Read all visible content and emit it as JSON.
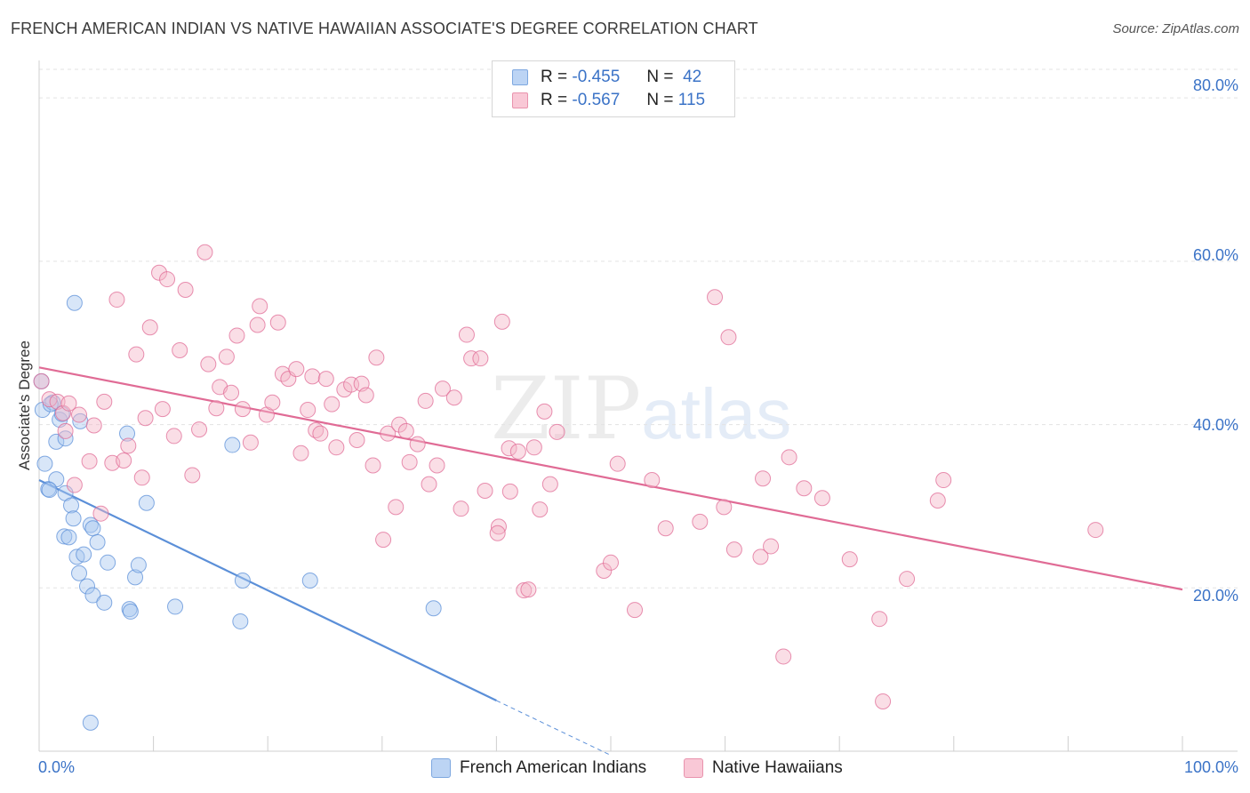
{
  "title": "FRENCH AMERICAN INDIAN VS NATIVE HAWAIIAN ASSOCIATE'S DEGREE CORRELATION CHART",
  "source": "Source: ZipAtlas.com",
  "watermark": {
    "zip": "ZIP",
    "atlas": "atlas"
  },
  "legend": {
    "rows": [
      {
        "r_label": "R =",
        "r_value": "-0.455",
        "n_label": "N =",
        "n_value": "42",
        "color": "#a9c7f0"
      },
      {
        "r_label": "R =",
        "r_value": "-0.567",
        "n_label": "N =",
        "n_value": "115",
        "color": "#f5b5c8"
      }
    ]
  },
  "bottom_legend": [
    {
      "label": "French American Indians",
      "color": "#a9c7f0"
    },
    {
      "label": "Native Hawaiians",
      "color": "#f5b5c8"
    }
  ],
  "chart_data": {
    "type": "scatter",
    "title": "FRENCH AMERICAN INDIAN VS NATIVE HAWAIIAN ASSOCIATE'S DEGREE CORRELATION CHART",
    "xlabel": "",
    "ylabel": "Associate's Degree",
    "xlim": [
      0,
      100
    ],
    "ylim": [
      0,
      83.5
    ],
    "x_tick_labels": [
      "0.0%",
      "100.0%"
    ],
    "y_ticks": [
      20,
      40,
      60,
      80
    ],
    "y_tick_labels": [
      "20.0%",
      "40.0%",
      "60.0%",
      "80.0%"
    ],
    "grid": true,
    "series": [
      {
        "name": "French American Indians",
        "color": "#5b8fd8",
        "fill": "#a9c7f0",
        "trend": {
          "x0": 0,
          "y0": 33.2,
          "x1": 40,
          "y1": 6.2,
          "dash_to_x": 50,
          "dash_to_y": -0.5
        },
        "points": [
          [
            0.2,
            45.3
          ],
          [
            0.3,
            41.8
          ],
          [
            0.5,
            35.2
          ],
          [
            0.8,
            32.1
          ],
          [
            1.2,
            42.7
          ],
          [
            1.5,
            37.9
          ],
          [
            1.8,
            40.6
          ],
          [
            1.5,
            33.3
          ],
          [
            2.0,
            41.3
          ],
          [
            2.2,
            26.3
          ],
          [
            2.3,
            38.3
          ],
          [
            2.3,
            31.6
          ],
          [
            2.6,
            26.2
          ],
          [
            2.8,
            30.1
          ],
          [
            3.0,
            28.5
          ],
          [
            3.1,
            54.9
          ],
          [
            3.3,
            23.8
          ],
          [
            3.5,
            21.8
          ],
          [
            3.6,
            40.4
          ],
          [
            3.9,
            24.1
          ],
          [
            4.2,
            20.2
          ],
          [
            4.5,
            27.7
          ],
          [
            4.7,
            27.3
          ],
          [
            4.5,
            3.5
          ],
          [
            4.7,
            19.1
          ],
          [
            5.1,
            25.6
          ],
          [
            5.7,
            18.2
          ],
          [
            6.0,
            23.1
          ],
          [
            7.7,
            38.9
          ],
          [
            7.9,
            17.4
          ],
          [
            8.0,
            17.1
          ],
          [
            8.4,
            21.3
          ],
          [
            8.7,
            22.8
          ],
          [
            9.4,
            30.4
          ],
          [
            11.9,
            17.7
          ],
          [
            16.9,
            37.5
          ],
          [
            17.6,
            15.9
          ],
          [
            17.8,
            20.9
          ],
          [
            23.7,
            20.9
          ],
          [
            34.5,
            17.5
          ],
          [
            1.0,
            42.5
          ],
          [
            0.9,
            32.0
          ]
        ]
      },
      {
        "name": "Native Hawaiians",
        "color": "#e06b95",
        "fill": "#f5b5c8",
        "trend": {
          "x0": 0,
          "y0": 47.0,
          "x1": 100,
          "y1": 19.8
        },
        "points": [
          [
            0.2,
            45.3
          ],
          [
            0.9,
            43.1
          ],
          [
            1.6,
            42.8
          ],
          [
            2.1,
            41.4
          ],
          [
            2.3,
            39.2
          ],
          [
            2.6,
            42.6
          ],
          [
            3.1,
            32.6
          ],
          [
            3.5,
            41.2
          ],
          [
            4.4,
            35.5
          ],
          [
            4.8,
            39.9
          ],
          [
            5.4,
            29.1
          ],
          [
            5.7,
            42.8
          ],
          [
            6.4,
            35.3
          ],
          [
            6.8,
            55.3
          ],
          [
            7.4,
            35.6
          ],
          [
            7.8,
            37.4
          ],
          [
            8.5,
            48.6
          ],
          [
            9.0,
            33.5
          ],
          [
            9.3,
            40.8
          ],
          [
            9.7,
            51.9
          ],
          [
            10.5,
            58.6
          ],
          [
            10.8,
            41.9
          ],
          [
            11.2,
            57.8
          ],
          [
            11.8,
            38.6
          ],
          [
            12.3,
            49.1
          ],
          [
            12.8,
            56.5
          ],
          [
            13.4,
            33.8
          ],
          [
            14.0,
            39.4
          ],
          [
            14.5,
            61.1
          ],
          [
            14.8,
            47.4
          ],
          [
            15.5,
            42.0
          ],
          [
            15.8,
            44.6
          ],
          [
            16.4,
            48.3
          ],
          [
            16.8,
            43.9
          ],
          [
            17.3,
            50.9
          ],
          [
            17.8,
            41.9
          ],
          [
            18.5,
            37.8
          ],
          [
            19.1,
            52.2
          ],
          [
            19.3,
            54.5
          ],
          [
            19.9,
            41.2
          ],
          [
            20.4,
            42.7
          ],
          [
            20.9,
            52.5
          ],
          [
            21.3,
            46.2
          ],
          [
            21.8,
            45.6
          ],
          [
            22.5,
            46.8
          ],
          [
            22.9,
            36.5
          ],
          [
            23.5,
            41.8
          ],
          [
            23.9,
            45.9
          ],
          [
            24.2,
            39.3
          ],
          [
            24.6,
            38.9
          ],
          [
            25.1,
            45.6
          ],
          [
            25.6,
            42.5
          ],
          [
            26.0,
            37.2
          ],
          [
            26.7,
            44.3
          ],
          [
            27.3,
            44.9
          ],
          [
            27.8,
            38.1
          ],
          [
            28.2,
            45.0
          ],
          [
            28.6,
            43.6
          ],
          [
            29.2,
            35.0
          ],
          [
            29.5,
            48.2
          ],
          [
            30.1,
            25.9
          ],
          [
            30.5,
            38.9
          ],
          [
            31.2,
            29.9
          ],
          [
            31.5,
            40.0
          ],
          [
            32.1,
            39.2
          ],
          [
            32.4,
            35.4
          ],
          [
            33.1,
            37.6
          ],
          [
            33.8,
            42.9
          ],
          [
            34.1,
            32.7
          ],
          [
            34.8,
            35.0
          ],
          [
            35.3,
            44.4
          ],
          [
            36.3,
            43.3
          ],
          [
            36.9,
            29.7
          ],
          [
            37.4,
            51.0
          ],
          [
            37.8,
            48.1
          ],
          [
            38.6,
            48.1
          ],
          [
            39.0,
            31.9
          ],
          [
            40.2,
            27.5
          ],
          [
            40.1,
            26.7
          ],
          [
            40.5,
            52.6
          ],
          [
            41.1,
            37.1
          ],
          [
            41.2,
            31.8
          ],
          [
            41.9,
            36.7
          ],
          [
            42.4,
            19.7
          ],
          [
            42.8,
            19.8
          ],
          [
            43.3,
            37.2
          ],
          [
            43.8,
            29.6
          ],
          [
            44.2,
            41.6
          ],
          [
            44.7,
            32.7
          ],
          [
            45.3,
            39.1
          ],
          [
            49.4,
            22.1
          ],
          [
            50.0,
            23.1
          ],
          [
            50.6,
            35.2
          ],
          [
            52.1,
            17.3
          ],
          [
            53.6,
            33.2
          ],
          [
            54.8,
            27.3
          ],
          [
            57.8,
            28.1
          ],
          [
            59.1,
            55.6
          ],
          [
            59.9,
            29.9
          ],
          [
            60.3,
            50.7
          ],
          [
            60.8,
            24.7
          ],
          [
            63.1,
            23.8
          ],
          [
            63.3,
            33.4
          ],
          [
            64.0,
            25.1
          ],
          [
            65.1,
            11.6
          ],
          [
            65.6,
            36.0
          ],
          [
            66.9,
            32.2
          ],
          [
            68.5,
            31.0
          ],
          [
            70.9,
            23.5
          ],
          [
            73.5,
            16.2
          ],
          [
            73.8,
            6.1
          ],
          [
            75.9,
            21.1
          ],
          [
            78.6,
            30.7
          ],
          [
            79.1,
            33.2
          ],
          [
            92.4,
            27.1
          ]
        ]
      }
    ]
  }
}
